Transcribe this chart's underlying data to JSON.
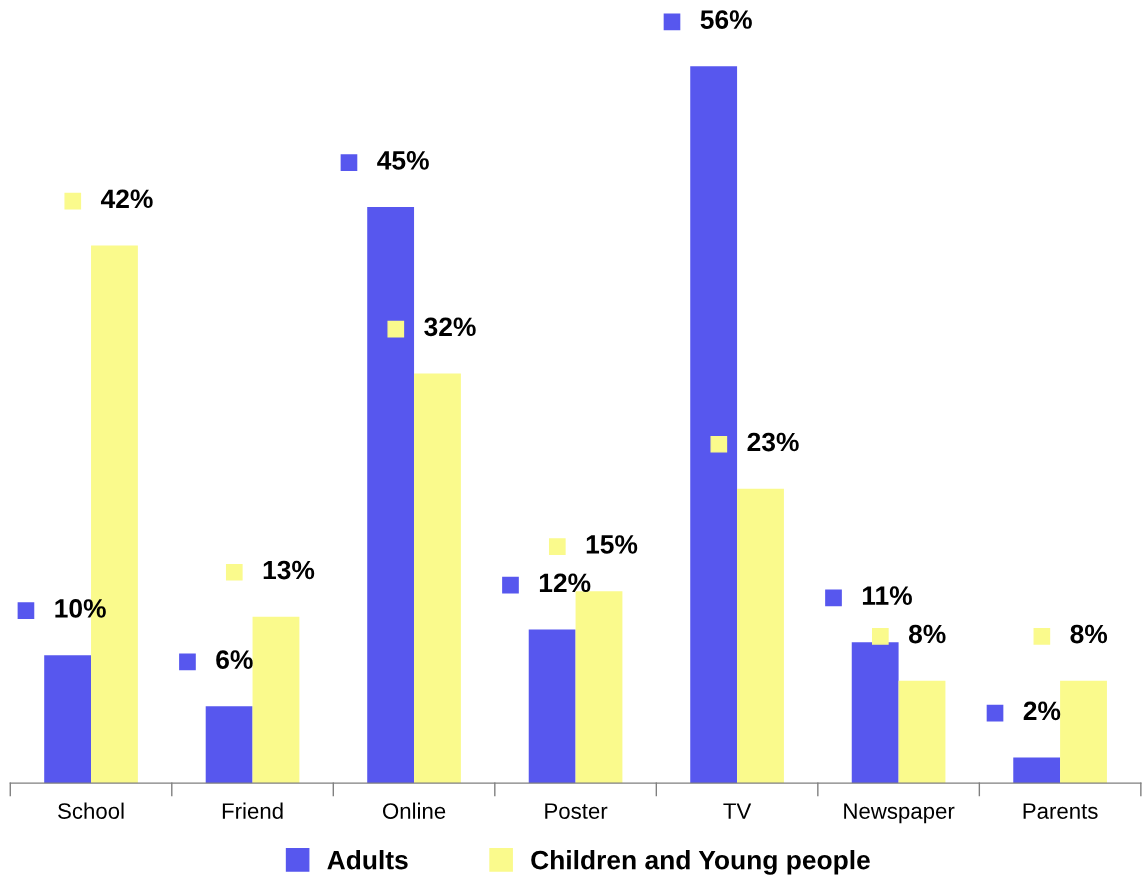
{
  "chart_data": {
    "type": "bar",
    "categories": [
      "School",
      "Friend",
      "Online",
      "Poster",
      "TV",
      "Newspaper",
      "Parents"
    ],
    "series": [
      {
        "name": "Adults",
        "color": "#5757ee",
        "values": [
          10,
          6,
          45,
          12,
          56,
          11,
          2
        ],
        "value_labels": [
          "10%",
          "6%",
          "45%",
          "12%",
          "56%",
          "11%",
          "2%"
        ]
      },
      {
        "name": "Children and Young people",
        "color": "#fafa8c",
        "values": [
          42,
          13,
          32,
          15,
          23,
          8,
          8
        ],
        "value_labels": [
          "42%",
          "13%",
          "32%",
          "15%",
          "23%",
          "8%",
          "8%"
        ]
      }
    ],
    "legend": "bottom",
    "grid": false
  }
}
